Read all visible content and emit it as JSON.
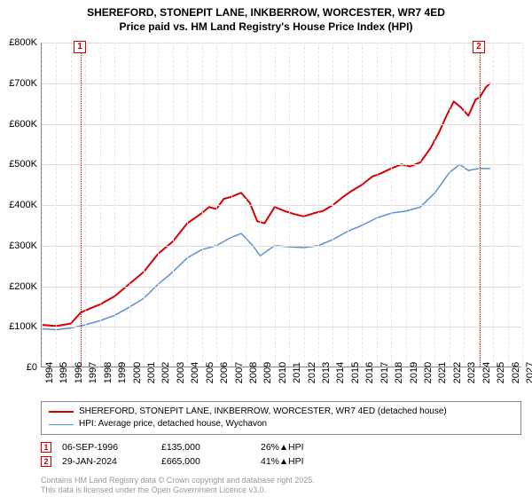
{
  "title_line1": "SHEREFORD, STONEPIT LANE, INKBERROW, WORCESTER, WR7 4ED",
  "title_line2": "Price paid vs. HM Land Registry's House Price Index (HPI)",
  "chart": {
    "type": "line",
    "background_color": "#ffffff",
    "grid_color": "#dddddd",
    "vgrid_color": "#e6e6e6",
    "axis_color": "#888888",
    "x": {
      "min": 1994,
      "max": 2027,
      "ticks": [
        1994,
        1995,
        1996,
        1997,
        1998,
        1999,
        2000,
        2001,
        2002,
        2003,
        2004,
        2005,
        2006,
        2007,
        2008,
        2009,
        2010,
        2011,
        2012,
        2013,
        2014,
        2015,
        2016,
        2017,
        2018,
        2019,
        2020,
        2021,
        2022,
        2023,
        2024,
        2025,
        2026,
        2027
      ],
      "tick_labels": [
        "1994",
        "1995",
        "1996",
        "1997",
        "1998",
        "1999",
        "2000",
        "2001",
        "2002",
        "2003",
        "2004",
        "2005",
        "2006",
        "2007",
        "2008",
        "2009",
        "2010",
        "2011",
        "2012",
        "2013",
        "2014",
        "2015",
        "2016",
        "2017",
        "2018",
        "2019",
        "2020",
        "2021",
        "2022",
        "2023",
        "2024",
        "2025",
        "2026",
        "2027"
      ]
    },
    "y": {
      "min": 0,
      "max": 800000,
      "ticks": [
        0,
        100000,
        200000,
        300000,
        400000,
        500000,
        600000,
        700000,
        800000
      ],
      "tick_labels": [
        "£0",
        "£100K",
        "£200K",
        "£300K",
        "£400K",
        "£500K",
        "£600K",
        "£700K",
        "£800K"
      ]
    },
    "series": [
      {
        "name": "SHEREFORD, STONEPIT LANE, INKBERROW, WORCESTER, WR7 4ED (detached house)",
        "color": "#d80000",
        "line_width": 2,
        "points": [
          [
            1994.0,
            105000
          ],
          [
            1995.0,
            102000
          ],
          [
            1996.0,
            108000
          ],
          [
            1996.68,
            135000
          ],
          [
            1997.5,
            148000
          ],
          [
            1998.0,
            155000
          ],
          [
            1998.5,
            165000
          ],
          [
            1999.0,
            175000
          ],
          [
            2000.0,
            205000
          ],
          [
            2001.0,
            235000
          ],
          [
            2002.0,
            280000
          ],
          [
            2003.0,
            310000
          ],
          [
            2004.0,
            355000
          ],
          [
            2005.0,
            380000
          ],
          [
            2005.5,
            395000
          ],
          [
            2006.0,
            390000
          ],
          [
            2006.5,
            415000
          ],
          [
            2007.0,
            420000
          ],
          [
            2007.7,
            430000
          ],
          [
            2008.3,
            405000
          ],
          [
            2008.8,
            360000
          ],
          [
            2009.3,
            355000
          ],
          [
            2010.0,
            395000
          ],
          [
            2010.7,
            385000
          ],
          [
            2011.3,
            378000
          ],
          [
            2012.0,
            372000
          ],
          [
            2012.7,
            380000
          ],
          [
            2013.3,
            385000
          ],
          [
            2014.0,
            400000
          ],
          [
            2014.7,
            420000
          ],
          [
            2015.3,
            435000
          ],
          [
            2016.0,
            450000
          ],
          [
            2016.7,
            470000
          ],
          [
            2017.3,
            478000
          ],
          [
            2018.0,
            490000
          ],
          [
            2018.7,
            500000
          ],
          [
            2019.3,
            495000
          ],
          [
            2020.0,
            505000
          ],
          [
            2020.7,
            540000
          ],
          [
            2021.3,
            580000
          ],
          [
            2021.8,
            620000
          ],
          [
            2022.3,
            655000
          ],
          [
            2022.8,
            640000
          ],
          [
            2023.3,
            620000
          ],
          [
            2023.8,
            660000
          ],
          [
            2024.08,
            665000
          ],
          [
            2024.5,
            690000
          ],
          [
            2024.8,
            700000
          ]
        ]
      },
      {
        "name": "HPI: Average price, detached house, Wychavon",
        "color": "#5b8fd6",
        "line_width": 1.5,
        "points": [
          [
            1994.0,
            95000
          ],
          [
            1995.0,
            93000
          ],
          [
            1996.0,
            97000
          ],
          [
            1997.0,
            105000
          ],
          [
            1998.0,
            115000
          ],
          [
            1999.0,
            128000
          ],
          [
            2000.0,
            148000
          ],
          [
            2001.0,
            170000
          ],
          [
            2002.0,
            205000
          ],
          [
            2003.0,
            235000
          ],
          [
            2004.0,
            270000
          ],
          [
            2005.0,
            290000
          ],
          [
            2006.0,
            300000
          ],
          [
            2007.0,
            320000
          ],
          [
            2007.7,
            330000
          ],
          [
            2008.5,
            300000
          ],
          [
            2009.0,
            275000
          ],
          [
            2010.0,
            300000
          ],
          [
            2011.0,
            297000
          ],
          [
            2012.0,
            295000
          ],
          [
            2013.0,
            300000
          ],
          [
            2014.0,
            315000
          ],
          [
            2015.0,
            335000
          ],
          [
            2016.0,
            350000
          ],
          [
            2017.0,
            368000
          ],
          [
            2018.0,
            380000
          ],
          [
            2019.0,
            385000
          ],
          [
            2020.0,
            395000
          ],
          [
            2021.0,
            430000
          ],
          [
            2022.0,
            480000
          ],
          [
            2022.7,
            500000
          ],
          [
            2023.3,
            485000
          ],
          [
            2024.0,
            490000
          ],
          [
            2024.8,
            490000
          ]
        ]
      }
    ],
    "markers": [
      {
        "n": "1",
        "year": 1996.68,
        "color": "#d80000"
      },
      {
        "n": "2",
        "year": 2024.08,
        "color": "#d80000"
      }
    ]
  },
  "legend": {
    "items": [
      {
        "color": "#d80000",
        "width": 2,
        "label": "SHEREFORD, STONEPIT LANE, INKBERROW, WORCESTER, WR7 4ED (detached house)"
      },
      {
        "color": "#5b8fd6",
        "width": 1.5,
        "label": "HPI: Average price, detached house, Wychavon"
      }
    ]
  },
  "transactions": [
    {
      "n": "1",
      "color": "#d80000",
      "date": "06-SEP-1996",
      "price": "£135,000",
      "diff_pct": "26%",
      "diff_label": "HPI"
    },
    {
      "n": "2",
      "color": "#d80000",
      "date": "29-JAN-2024",
      "price": "£665,000",
      "diff_pct": "41%",
      "diff_label": "HPI"
    }
  ],
  "attribution_line1": "Contains HM Land Registry data © Crown copyright and database right 2025.",
  "attribution_line2": "This data is licensed under the Open Government Licence v3.0."
}
